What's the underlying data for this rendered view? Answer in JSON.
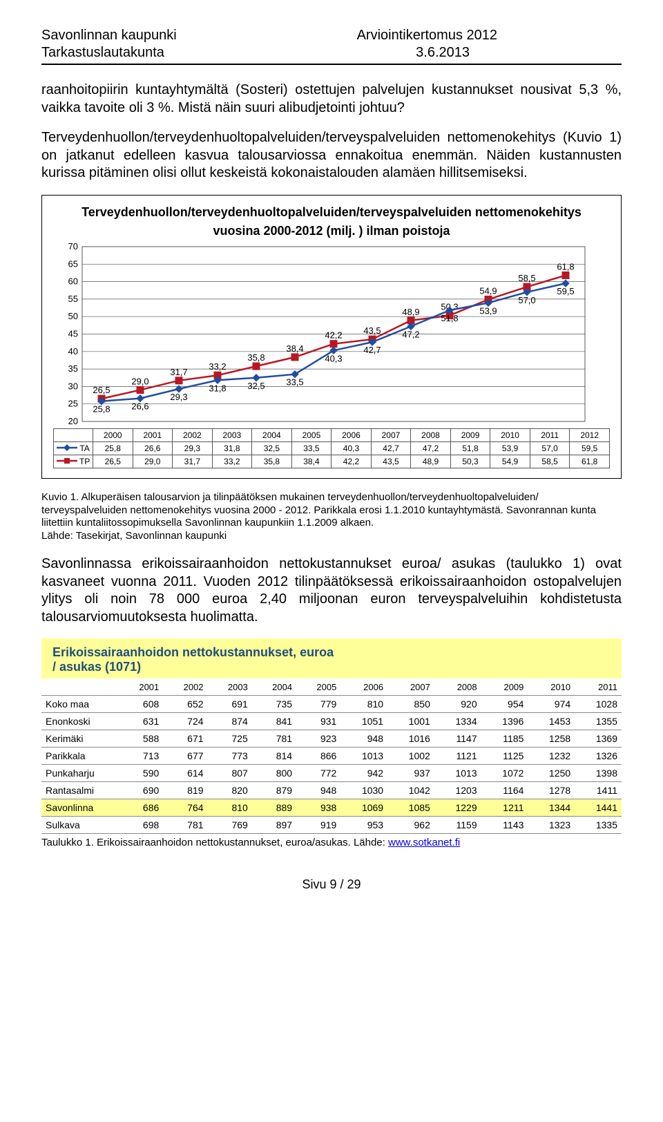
{
  "header": {
    "org": "Savonlinnan kaupunki",
    "doc": "Arviointikertomus 2012",
    "board": "Tarkastuslautakunta",
    "date": "3.6.2013"
  },
  "para1": "raanhoitopiirin kuntayhtymältä (Sosteri) ostettujen palvelujen kustannukset nousivat 5,3 %, vaikka tavoite oli 3 %. Mistä näin suuri alibudjetointi johtuu?",
  "para2": "Terveydenhuollon/terveydenhuoltopalveluiden/terveyspalveluiden nettomenokehitys (Kuvio 1) on jatkanut edelleen kasvua talousarviossa ennakoitua enemmän. Näiden kustannusten kurissa pitäminen olisi ollut keskeistä kokonaistalouden alamäen hillitsemiseksi.",
  "chart": {
    "title_l1": "Terveydenhuollon/terveydenhuoltopalveluiden/terveyspalveluiden nettomenokehitys",
    "title_l2": "vuosina 2000-2012 (milj. ) ilman poistoja",
    "years": [
      "2000",
      "2001",
      "2002",
      "2003",
      "2004",
      "2005",
      "2006",
      "2007",
      "2008",
      "2009",
      "2010",
      "2011",
      "2012"
    ],
    "TA": [
      "25,8",
      "26,6",
      "29,3",
      "31,8",
      "32,5",
      "33,5",
      "40,3",
      "42,7",
      "47,2",
      "51,8",
      "53,9",
      "57,0",
      "59,5"
    ],
    "TP": [
      "26,5",
      "29,0",
      "31,7",
      "33,2",
      "35,8",
      "38,4",
      "42,2",
      "43,5",
      "48,9",
      "50,3",
      "54,9",
      "58,5",
      "61,8"
    ],
    "TA_v": [
      25.8,
      26.6,
      29.3,
      31.8,
      32.5,
      33.5,
      40.3,
      42.7,
      47.2,
      51.8,
      53.9,
      57.0,
      59.5
    ],
    "TP_v": [
      26.5,
      29.0,
      31.7,
      33.2,
      35.8,
      38.4,
      42.2,
      43.5,
      48.9,
      50.3,
      54.9,
      58.5,
      61.8
    ],
    "ylim": [
      20,
      70
    ],
    "ytick_step": 5,
    "ta_color": "#1f4ea1",
    "tp_color": "#b81723",
    "grid_color": "#555555",
    "marker_size": 5,
    "line_width": 2.5,
    "ta_label": "TA",
    "tp_label": "TP"
  },
  "caption1_a": "Kuvio 1. Alkuperäisen talousarvion ja tilinpäätöksen mukainen terveydenhuollon/terveydenhuoltopalveluiden/ terveyspalveluiden nettomenokehitys vuosina 2000 - 2012. Parikkala erosi 1.1.2010 kuntayhtymästä. Savonrannan kunta liitettiin kuntaliitossopimuksella Savonlinnan kaupunkiin 1.1.2009 alkaen.",
  "caption1_b": "Lähde: Tasekirjat, Savonlinnan kaupunki",
  "para3": "Savonlinnassa erikoissairaanhoidon nettokustannukset euroa/ asukas (taulukko 1) ovat kasvaneet vuonna 2011. Vuoden 2012 tilinpäätöksessä erikoissairaanhoidon ostopalvelujen ylitys oli noin 78 000 euroa 2,40 miljoonan euron terveyspalveluihin kohdistetusta talousarviomuutoksesta huolimatta.",
  "datatable": {
    "title_l1": "Erikoissairaanhoidon nettokustannukset, euroa",
    "title_l2": "/ asukas (1071)",
    "years": [
      "2001",
      "2002",
      "2003",
      "2004",
      "2005",
      "2006",
      "2007",
      "2008",
      "2009",
      "2010",
      "2011"
    ],
    "rows": [
      {
        "name": "Koko maa",
        "vals": [
          "608",
          "652",
          "691",
          "735",
          "779",
          "810",
          "850",
          "920",
          "954",
          "974",
          "1028"
        ],
        "hl": false
      },
      {
        "name": "Enonkoski",
        "vals": [
          "631",
          "724",
          "874",
          "841",
          "931",
          "1051",
          "1001",
          "1334",
          "1396",
          "1453",
          "1355"
        ],
        "hl": false
      },
      {
        "name": "Kerimäki",
        "vals": [
          "588",
          "671",
          "725",
          "781",
          "923",
          "948",
          "1016",
          "1147",
          "1185",
          "1258",
          "1369"
        ],
        "hl": false
      },
      {
        "name": "Parikkala",
        "vals": [
          "713",
          "677",
          "773",
          "814",
          "866",
          "1013",
          "1002",
          "1121",
          "1125",
          "1232",
          "1326"
        ],
        "hl": false
      },
      {
        "name": "Punkaharju",
        "vals": [
          "590",
          "614",
          "807",
          "800",
          "772",
          "942",
          "937",
          "1013",
          "1072",
          "1250",
          "1398"
        ],
        "hl": false
      },
      {
        "name": "Rantasalmi",
        "vals": [
          "690",
          "819",
          "820",
          "879",
          "948",
          "1030",
          "1042",
          "1203",
          "1164",
          "1278",
          "1411"
        ],
        "hl": false
      },
      {
        "name": "Savonlinna",
        "vals": [
          "686",
          "764",
          "810",
          "889",
          "938",
          "1069",
          "1085",
          "1229",
          "1211",
          "1344",
          "1441"
        ],
        "hl": true
      },
      {
        "name": "Sulkava",
        "vals": [
          "698",
          "781",
          "769",
          "897",
          "919",
          "953",
          "962",
          "1159",
          "1143",
          "1323",
          "1335"
        ],
        "hl": false
      }
    ]
  },
  "caption2_a": "Taulukko 1. Erikoissairaanhoidon nettokustannukset, euroa/asukas. Lähde: ",
  "caption2_link": "www.sotkanet.fi",
  "footer": "Sivu 9 / 29"
}
